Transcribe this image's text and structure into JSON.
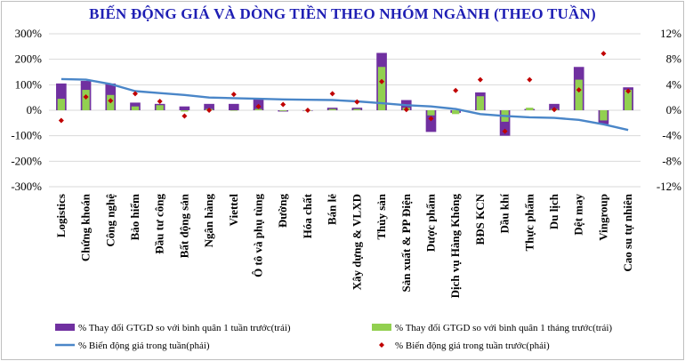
{
  "chart_data": {
    "type": "bar",
    "title": "BIẾN ĐỘNG GIÁ VÀ DÒNG TIỀN THEO NHÓM NGÀNH (THEO TUẦN)",
    "categories": [
      "Logistics",
      "Chứng khoán",
      "Công nghệ",
      "Bảo hiểm",
      "Đầu tư công",
      "Bất động sản",
      "Ngân hàng",
      "Viettel",
      "Ô tô và phụ tùng",
      "Đường",
      "Hóa chất",
      "Bán lẻ",
      "Xây dựng & VLXD",
      "Thủy sản",
      "Sản xuất & PP Điện",
      "Dược phẩm",
      "Dịch vụ Hàng Không",
      "BĐS KCN",
      "Dầu khí",
      "Thực phẩm",
      "Du lịch",
      "Dệt may",
      "Vingroup",
      "Cao su tự nhiên"
    ],
    "left_axis": {
      "ticks": [
        "300%",
        "200%",
        "100%",
        "0%",
        "-100%",
        "-200%",
        "-300%"
      ],
      "ylim": [
        -300,
        300
      ]
    },
    "right_axis": {
      "ticks": [
        "12%",
        "8%",
        "4%",
        "0%",
        "-4%",
        "-8%",
        "-12%"
      ],
      "ylim": [
        -12,
        12
      ]
    },
    "series": [
      {
        "name": "% Thay đổi GTGD so với bình quân 1 tuần trước(trái)",
        "type": "bar",
        "axis": "left",
        "color": "#7030a0",
        "values": [
          105,
          115,
          105,
          30,
          25,
          15,
          25,
          25,
          45,
          -5,
          0,
          10,
          10,
          225,
          40,
          -85,
          -10,
          70,
          -100,
          5,
          25,
          170,
          -55,
          90
        ]
      },
      {
        "name": "% Thay đổi GTGD so với bình quân 1 tháng trước(trái)",
        "type": "bar",
        "axis": "left",
        "color": "#92d050",
        "values": [
          45,
          80,
          60,
          15,
          20,
          -5,
          5,
          0,
          5,
          -3,
          0,
          5,
          5,
          170,
          10,
          -20,
          -15,
          55,
          -45,
          10,
          5,
          120,
          -40,
          80
        ]
      },
      {
        "name": "% Biến động giá trong tuần(phải)",
        "type": "line",
        "axis": "right",
        "color": "#4a86c8",
        "values": [
          4.9,
          4.8,
          4.1,
          3.0,
          2.7,
          2.4,
          2.0,
          1.9,
          1.8,
          1.7,
          1.65,
          1.6,
          1.4,
          1.1,
          0.8,
          0.6,
          0.2,
          -0.6,
          -0.9,
          -1.1,
          -1.2,
          -1.5,
          -2.2,
          -3.1
        ]
      },
      {
        "name": "% Biến động giá trong tuần trước(phải)",
        "type": "scatter",
        "axis": "right",
        "color": "#c00000",
        "values": [
          -1.6,
          2.1,
          1.5,
          2.6,
          1.4,
          -0.9,
          0.0,
          2.5,
          0.6,
          0.9,
          0.0,
          2.6,
          1.3,
          4.5,
          0.1,
          -1.3,
          3.1,
          4.8,
          -3.3,
          4.8,
          0.1,
          3.2,
          8.9,
          3.0
        ]
      }
    ],
    "legend_position": "bottom"
  }
}
